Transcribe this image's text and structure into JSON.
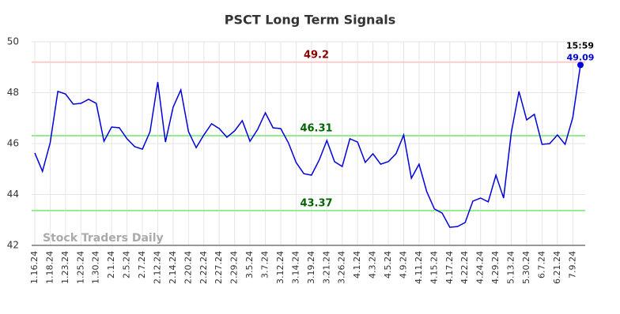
{
  "chart_data": {
    "type": "line",
    "title": "PSCT Long Term Signals",
    "watermark": "Stock Traders Daily",
    "annotation": "15:59",
    "categories": [
      "1.16.24",
      null,
      "1.18.24",
      null,
      "1.23.24",
      null,
      "1.25.24",
      null,
      "1.30.24",
      null,
      "2.1.24",
      null,
      "2.5.24",
      null,
      "2.7.24",
      null,
      "2.12.24",
      null,
      "2.14.24",
      null,
      "2.20.24",
      null,
      "2.22.24",
      null,
      "2.27.24",
      null,
      "2.29.24",
      null,
      "3.5.24",
      null,
      "3.7.24",
      null,
      "3.12.24",
      null,
      "3.14.24",
      null,
      "3.19.24",
      null,
      "3.21.24",
      null,
      "3.26.24",
      null,
      "4.1.24",
      null,
      "4.3.24",
      null,
      "4.5.24",
      null,
      "4.9.24",
      null,
      "4.11.24",
      null,
      "4.15.24",
      null,
      "4.17.24",
      null,
      "4.22.24",
      null,
      "4.24.24",
      null,
      "4.29.24",
      null,
      "5.13.24",
      null,
      "5.30.24",
      null,
      "6.7.24",
      null,
      "6.21.24",
      null,
      "7.9.24",
      null
    ],
    "series": [
      {
        "name": "PSCT",
        "color": "#0000dd",
        "values": [
          45.63,
          44.91,
          46.03,
          48.05,
          47.95,
          47.55,
          47.58,
          47.74,
          47.58,
          46.09,
          46.65,
          46.62,
          46.19,
          45.88,
          45.78,
          46.47,
          48.42,
          46.06,
          47.43,
          48.11,
          46.47,
          45.84,
          46.34,
          46.78,
          46.59,
          46.25,
          46.5,
          46.9,
          46.09,
          46.56,
          47.21,
          46.62,
          46.59,
          46.03,
          45.26,
          44.82,
          44.76,
          45.35,
          46.12,
          45.29,
          45.1,
          46.19,
          46.06,
          45.26,
          45.6,
          45.19,
          45.29,
          45.6,
          46.34,
          44.64,
          45.19,
          44.11,
          43.43,
          43.27,
          42.71,
          42.74,
          42.9,
          43.74,
          43.86,
          43.71,
          44.76,
          43.86,
          46.43,
          48.05,
          46.93,
          47.15,
          45.97,
          46.0,
          46.34,
          45.97,
          47.02,
          49.09
        ]
      }
    ],
    "reference_lines": [
      {
        "value": 49.2,
        "line_color": "#ffcccc",
        "text_color": "#8b0000"
      },
      {
        "value": 46.31,
        "line_color": "#90ee90",
        "text_color": "#006400"
      },
      {
        "value": 43.37,
        "line_color": "#90ee90",
        "text_color": "#006400"
      }
    ],
    "ylim": [
      42,
      50
    ],
    "yticks": [
      42,
      44,
      46,
      48,
      50
    ],
    "grid": true
  }
}
